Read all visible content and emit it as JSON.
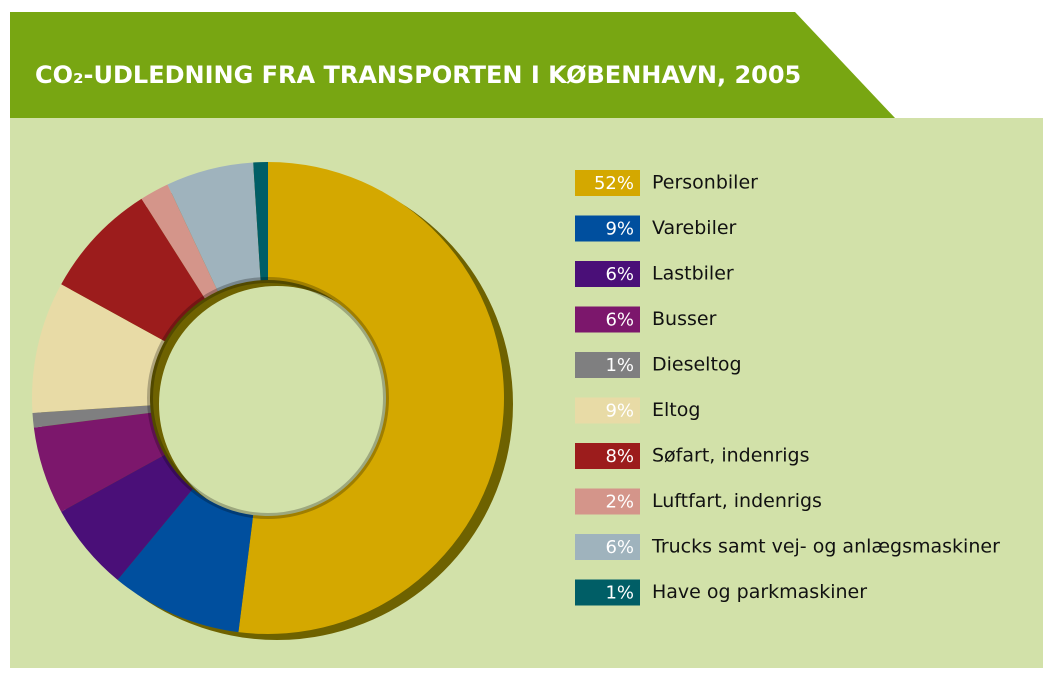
{
  "chart_data": {
    "type": "donut",
    "title": "CO₂-UDLEDNING FRA TRANSPORTEN I KØBENHAVN, 2005",
    "categories": [
      "Personbiler",
      "Varebiler",
      "Lastbiler",
      "Busser",
      "Dieseltog",
      "Eltog",
      "Søfart, indenrigs",
      "Luftfart, indenrigs",
      "Trucks samt vej- og anlægsmaskiner",
      "Have og parkmaskiner"
    ],
    "values": [
      52,
      9,
      6,
      6,
      1,
      9,
      8,
      2,
      6,
      1
    ],
    "value_labels": [
      "52%",
      "9%",
      "6%",
      "6%",
      "1%",
      "9%",
      "8%",
      "2%",
      "6%",
      "1%"
    ],
    "colors": [
      "#d4a800",
      "#004f9e",
      "#4a0f78",
      "#7c176c",
      "#7f7f80",
      "#e8dba6",
      "#9c1c1c",
      "#d4958a",
      "#9fb3bd",
      "#005e66"
    ]
  }
}
